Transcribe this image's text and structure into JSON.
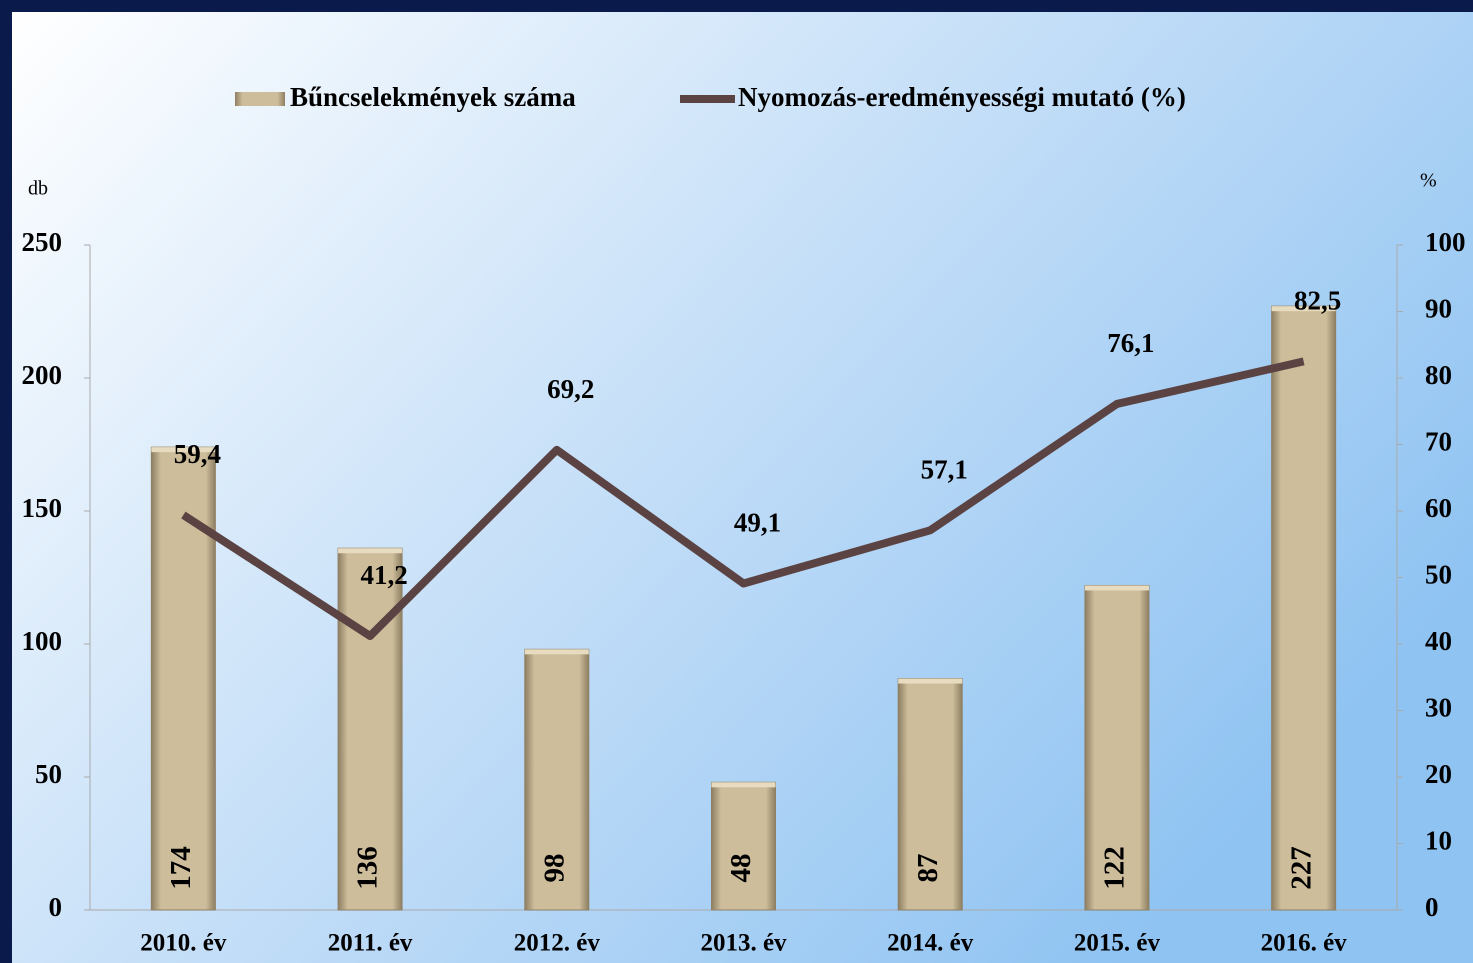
{
  "chart_data": {
    "type": "bar_line",
    "categories": [
      "2010. év",
      "2011. év",
      "2012. év",
      "2013. év",
      "2014. év",
      "2015. év",
      "2016. év"
    ],
    "series": [
      {
        "name": "Bűncselekmények száma",
        "type": "bar",
        "color": "#c9b996",
        "values": [
          174,
          136,
          98,
          48,
          87,
          122,
          227
        ]
      },
      {
        "name": "Nyomozás-eredményességi mutató (%)",
        "type": "line",
        "axis": "y2",
        "color": "#5b4343",
        "values": [
          59.4,
          41.2,
          69.2,
          49.1,
          57.1,
          76.1,
          82.5
        ],
        "value_labels": [
          "59,4",
          "41,2",
          "69,2",
          "49,1",
          "57,1",
          "76,1",
          "82,5"
        ]
      }
    ],
    "y_label": "db",
    "y2_label": "%",
    "ylim": [
      0,
      250
    ],
    "yticks": [
      0,
      50,
      100,
      150,
      200,
      250
    ],
    "y2lim": [
      0,
      100
    ],
    "y2ticks": [
      0,
      10,
      20,
      30,
      40,
      50,
      60,
      70,
      80,
      90,
      100
    ],
    "legend": "top"
  }
}
